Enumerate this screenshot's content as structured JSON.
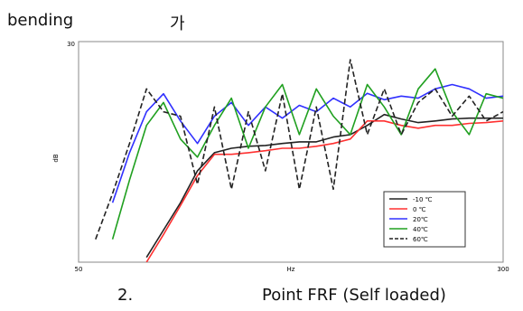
{
  "header": {
    "text": "bending",
    "korean": "가"
  },
  "caption": {
    "number": "2.",
    "text": "Point FRF (Self loaded)"
  },
  "chart_data": {
    "type": "line",
    "x_label": "Hz",
    "y_label": "dB",
    "x": [
      60,
      70,
      80,
      90,
      100,
      110,
      120,
      130,
      140,
      150,
      160,
      170,
      180,
      190,
      200,
      210,
      220,
      230,
      240,
      250,
      260,
      270,
      280,
      290,
      300
    ],
    "xlim": [
      50,
      300
    ],
    "xticks": [
      50,
      300
    ],
    "ylim": [
      -25,
      30
    ],
    "yticks": [
      30
    ],
    "legend": "lower-right",
    "series": [
      {
        "name": "-10 ℃",
        "color": "#222222",
        "style": "solid",
        "values": [
          null,
          null,
          null,
          -23.8,
          -17,
          -10.2,
          -2.2,
          2.3,
          3.4,
          3.9,
          4.1,
          4.6,
          5,
          5,
          6.2,
          6.8,
          9.1,
          11.8,
          10.7,
          9.8,
          10.2,
          10.7,
          10.9,
          10.9,
          10.9
        ]
      },
      {
        "name": "0 ℃",
        "color": "#ff3030",
        "style": "solid",
        "values": [
          null,
          null,
          null,
          -25,
          -18.1,
          -10.9,
          -3.4,
          1.9,
          1.9,
          2.3,
          2.8,
          3.4,
          3.4,
          3.9,
          4.6,
          5.7,
          10.2,
          10.2,
          9.1,
          8.4,
          9.1,
          9.1,
          9.6,
          9.8,
          10.2
        ]
      },
      {
        "name": "20℃",
        "color": "#3030ff",
        "style": "solid",
        "values": [
          null,
          -10.2,
          2.3,
          12.5,
          17,
          10.2,
          4.6,
          11.4,
          14.8,
          9.1,
          13.7,
          10.9,
          14.1,
          12.5,
          15.9,
          13.7,
          17.1,
          15.5,
          16.4,
          15.9,
          18.2,
          19.3,
          18.2,
          15.9,
          16.4
        ]
      },
      {
        "name": "40℃",
        "color": "#20a020",
        "style": "solid",
        "values": [
          null,
          -19.3,
          -4.5,
          9.1,
          14.8,
          5.7,
          1.2,
          9.1,
          15.9,
          3.4,
          13.7,
          19.3,
          6.8,
          18.2,
          11.4,
          6.8,
          19.3,
          13.7,
          6.8,
          18.2,
          23.2,
          12.5,
          6.8,
          17,
          15.9
        ]
      },
      {
        "name": "60℃",
        "color": "#222222",
        "style": "dashed",
        "values": [
          -19.3,
          -7.9,
          4.6,
          18.2,
          12.5,
          11.4,
          -5.6,
          13.7,
          -6.8,
          12.5,
          -2.2,
          17,
          -6.8,
          13.7,
          -6.8,
          25.5,
          6.8,
          18.2,
          6.8,
          14.8,
          18.2,
          11.4,
          16.4,
          10.2,
          12.5
        ]
      }
    ]
  }
}
